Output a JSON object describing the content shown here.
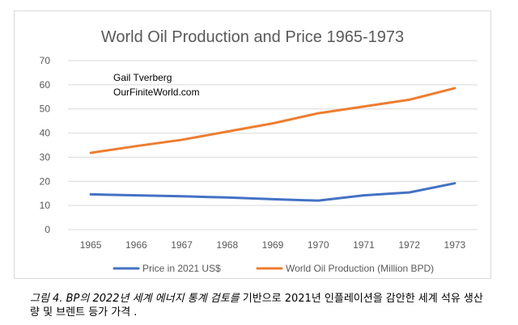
{
  "chart_data": {
    "type": "line",
    "title": "World Oil Production and Price 1965-1973",
    "x": [
      "1965",
      "1966",
      "1967",
      "1968",
      "1969",
      "1970",
      "1971",
      "1972",
      "1973"
    ],
    "ylim": [
      0,
      70
    ],
    "yticks": [
      0,
      10,
      20,
      30,
      40,
      50,
      60,
      70
    ],
    "grid": true,
    "legend_position": "bottom",
    "annotations": [
      "Gail Tverberg",
      "OurFiniteWorld.com"
    ],
    "series": [
      {
        "name": "Price in 2021 US$",
        "color": "#4472c4",
        "values": [
          14.6,
          14.2,
          13.8,
          13.3,
          12.6,
          12.0,
          14.2,
          15.4,
          19.2
        ]
      },
      {
        "name": "World Oil Production (Million BPD)",
        "color": "#ed7d31",
        "values": [
          31.8,
          34.6,
          37.2,
          40.6,
          44.0,
          48.2,
          51.0,
          53.8,
          58.6
        ]
      }
    ]
  },
  "caption": {
    "italic": "그림 4. BP의 2022년 세계 에너지 통계 검토를",
    "rest": " 기반으로 2021년 인플레이션을 감안한 세계 석유 생산량 및 브렌트 등가 가격 ."
  }
}
